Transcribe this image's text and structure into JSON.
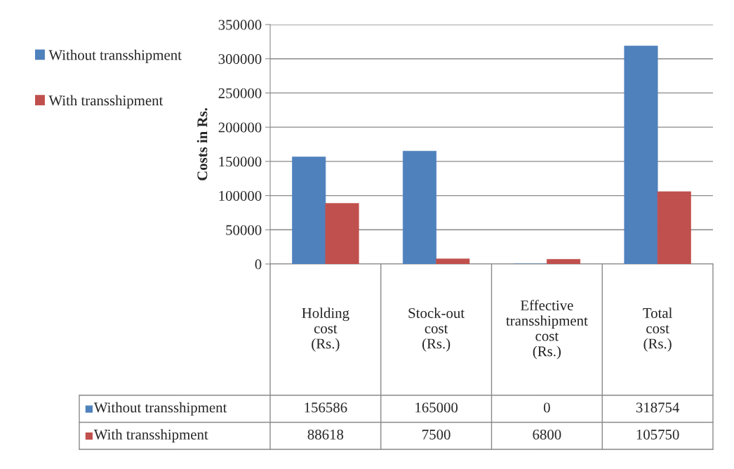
{
  "chart_data": {
    "type": "bar",
    "ylabel": "Costs in Rs.",
    "categories": [
      "Holding cost (Rs.)",
      "Stock-out cost (Rs.)",
      "Effective transshipment cost (Rs.)",
      "Total cost (Rs.)"
    ],
    "series": [
      {
        "name": "Without transshipment",
        "color": "#4f81bd",
        "values": [
          156586,
          165000,
          0,
          318754
        ]
      },
      {
        "name": "With transshipment",
        "color": "#c0504d",
        "values": [
          88618,
          7500,
          6800,
          105750
        ]
      }
    ],
    "ylim": [
      0,
      350000
    ],
    "yticks": [
      0,
      50000,
      100000,
      150000,
      200000,
      250000,
      300000,
      350000
    ],
    "grid": "y",
    "legend": "left",
    "data_labels": true
  }
}
